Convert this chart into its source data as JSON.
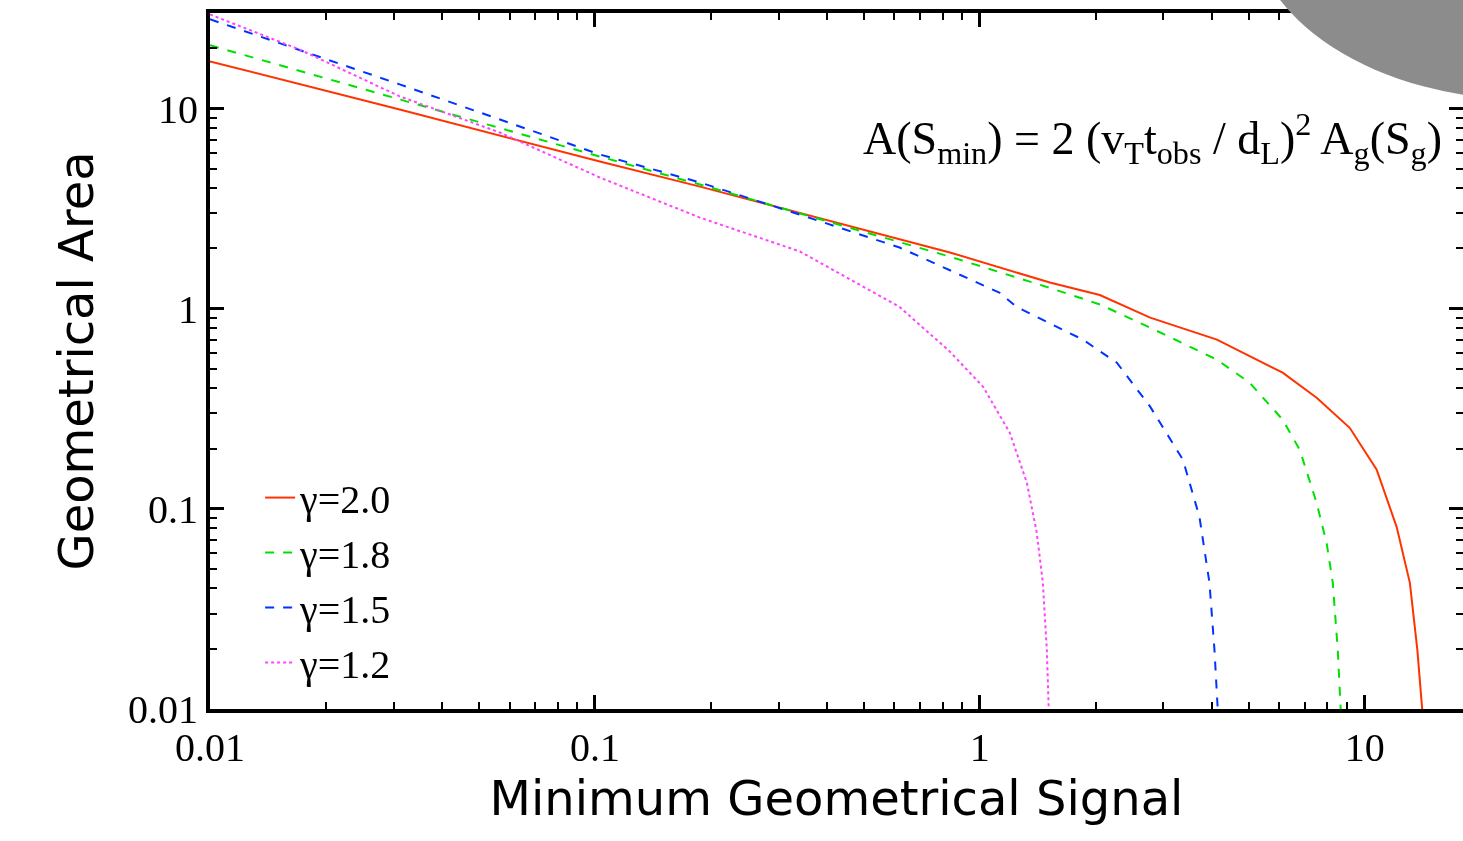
{
  "chart_data": {
    "type": "line",
    "xlabel": "Minimum Geometrical Signal",
    "ylabel": "Geometrical Area",
    "log": "xy",
    "grid": false,
    "legend": "bottom left",
    "marker": "none",
    "xlim": [
      0.01,
      18
    ],
    "xticks": [
      0.01,
      0.1,
      1,
      10
    ],
    "ylim": [
      0.01,
      30
    ],
    "yticks": [
      0.01,
      0.1,
      1,
      10
    ],
    "annotations": [
      "A(S$_{min}$) = 2 (v$_{T}$t$_{obs}$ / d$_{L}$)$^{2}$ A$_{g}$(S$_{g}$)"
    ],
    "series": [
      {
        "name": "γ=2.0",
        "color": "#ff3300",
        "line_style": "solid",
        "x": [
          0.01,
          0.0311,
          0.103,
          0.1875,
          0.836,
          1.52,
          2.05,
          2.77,
          4.13,
          6.12,
          7.5,
          9.14,
          10.74,
          12.1,
          13.1,
          13.7,
          14.1
        ],
        "values": [
          17.2,
          9.89,
          5.43,
          4.07,
          1.91,
          1.35,
          1.17,
          0.902,
          0.7,
          0.479,
          0.359,
          0.254,
          0.157,
          0.0813,
          0.0427,
          0.0197,
          0.01
        ]
      },
      {
        "name": "γ=1.8",
        "color": "#00e000",
        "line_style": "dashed",
        "x": [
          0.01,
          0.0311,
          0.103,
          0.1875,
          0.836,
          1.52,
          2.05,
          2.77,
          4.13,
          5.02,
          6.12,
          6.78,
          7.5,
          7.96,
          8.26,
          8.51,
          8.66
        ],
        "values": [
          20.7,
          11.1,
          5.75,
          4.17,
          1.82,
          1.27,
          1.05,
          0.804,
          0.556,
          0.427,
          0.279,
          0.197,
          0.107,
          0.0676,
          0.0427,
          0.0197,
          0.01
        ]
      },
      {
        "name": "γ=1.5",
        "color": "#0033ff",
        "line_style": "dashed",
        "x": [
          0.01,
          0.0311,
          0.103,
          0.1875,
          0.341,
          0.619,
          1.127,
          1.247,
          1.853,
          2.27,
          2.77,
          3.37,
          3.72,
          3.95,
          4.07,
          4.15
        ],
        "values": [
          27.9,
          13.2,
          5.89,
          4.27,
          2.95,
          2.02,
          1.2,
          1.02,
          0.7,
          0.537,
          0.324,
          0.176,
          0.0912,
          0.0427,
          0.0197,
          0.01
        ]
      },
      {
        "name": "γ=1.2",
        "color": "#ff44ff",
        "line_style": "dotted",
        "x": [
          0.01,
          0.0171,
          0.0311,
          0.0566,
          0.103,
          0.1875,
          0.341,
          0.619,
          0.836,
          1.02,
          1.196,
          1.325,
          1.406,
          1.458,
          1.493,
          1.51
        ],
        "values": [
          29.5,
          19.7,
          11.5,
          7.59,
          4.52,
          2.85,
          1.93,
          1.02,
          0.61,
          0.407,
          0.24,
          0.135,
          0.0759,
          0.0427,
          0.0197,
          0.01
        ]
      }
    ]
  }
}
